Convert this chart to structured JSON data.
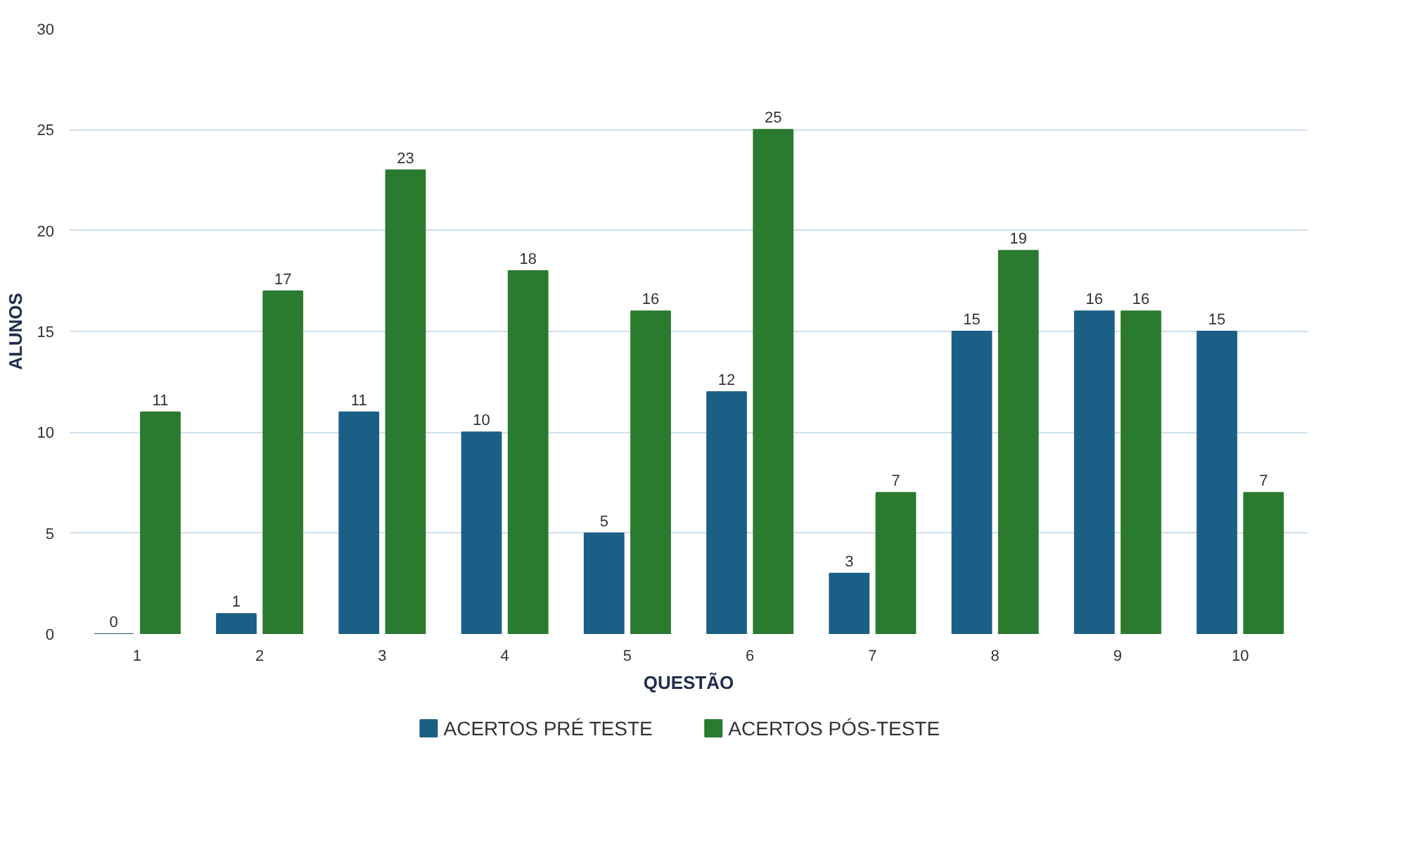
{
  "chart_data": {
    "type": "bar",
    "xlabel": "QUESTÃO",
    "ylabel": "ALUNOS",
    "categories": [
      "1",
      "2",
      "3",
      "4",
      "5",
      "6",
      "7",
      "8",
      "9",
      "10"
    ],
    "series": [
      {
        "name": "ACERTOS PRÉ TESTE",
        "color": "#1c5f86",
        "values": [
          0,
          1,
          11,
          10,
          5,
          12,
          3,
          15,
          16,
          15
        ]
      },
      {
        "name": "ACERTOS PÓS-TESTE",
        "color": "#2a7a30",
        "values": [
          11,
          17,
          23,
          18,
          16,
          25,
          7,
          19,
          16,
          7
        ]
      }
    ],
    "ylim": [
      0,
      30
    ],
    "yticks": [
      0,
      5,
      10,
      15,
      20,
      25,
      30
    ],
    "grid": "y",
    "legend": "bottom",
    "data_labels": true
  }
}
